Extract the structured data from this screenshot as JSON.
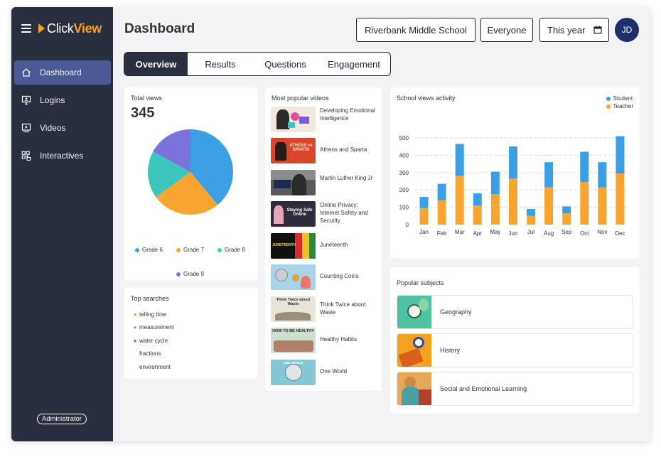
{
  "app": {
    "logo_click": "Click",
    "logo_view": "View"
  },
  "sidebar": {
    "items": [
      {
        "label": "Dashboard",
        "icon": "home-icon",
        "active": true
      },
      {
        "label": "Logins",
        "icon": "login-monitor-icon",
        "active": false
      },
      {
        "label": "Videos",
        "icon": "video-icon",
        "active": false
      },
      {
        "label": "Interactives",
        "icon": "interactive-icon",
        "active": false
      }
    ],
    "role": "Administrator"
  },
  "header": {
    "title": "Dashboard",
    "school": "Riverbank Middle School",
    "audience": "Everyone",
    "period": "This year",
    "avatar_initials": "JD"
  },
  "tabs": [
    {
      "label": "Overview",
      "active": true
    },
    {
      "label": "Results",
      "active": false
    },
    {
      "label": "Questions",
      "active": false
    },
    {
      "label": "Engagement",
      "active": false
    }
  ],
  "total_views": {
    "title": "Total views",
    "value": "345",
    "legend": [
      {
        "label": "Grade 6",
        "color": "#3d9fe3"
      },
      {
        "label": "Grade 7",
        "color": "#f7a530"
      },
      {
        "label": "Grade 8",
        "color": "#3ec5bd"
      },
      {
        "label": "Grade 9",
        "color": "#7b73db"
      }
    ]
  },
  "top_searches": {
    "title": "Top searches",
    "items": [
      {
        "label": "telling time",
        "medal": "gold"
      },
      {
        "label": "measurement",
        "medal": "silver"
      },
      {
        "label": "water cycle",
        "medal": "bronze"
      },
      {
        "label": "fractions",
        "medal": ""
      },
      {
        "label": "environment",
        "medal": ""
      }
    ]
  },
  "popular_videos": {
    "title": "Most popular videos",
    "items": [
      {
        "title": "Developing Emotional Intelligence",
        "thumb_color": "#f1e9dc",
        "thumb_text": ""
      },
      {
        "title": "Athens and Sparta",
        "thumb_color": "#d9462a",
        "thumb_text": "ATHENS vs SPARTA"
      },
      {
        "title": "Martin Luther King Jr",
        "thumb_color": "#5a5a5a",
        "thumb_text": ""
      },
      {
        "title": "Online Privacy: Internet Safety and Security",
        "thumb_color": "#2e2b3a",
        "thumb_text": "Staying Safe Online"
      },
      {
        "title": "Juneteenth",
        "thumb_color": "#111111",
        "thumb_text": "JUNETEENTH"
      },
      {
        "title": "Counting Coins",
        "thumb_color": "#a9d3e8",
        "thumb_text": ""
      },
      {
        "title": "Think Twice about Waste",
        "thumb_color": "#e8e4d8",
        "thumb_text": "Think Twice about Waste"
      },
      {
        "title": "Healthy Habits",
        "thumb_color": "#cfe0d0",
        "thumb_text": "HOW TO BE HEALTHY"
      },
      {
        "title": "One World",
        "thumb_color": "#86c7d6",
        "thumb_text": "ONE WORLD"
      }
    ]
  },
  "activity": {
    "title": "School views activity",
    "legend": [
      {
        "label": "Student",
        "color": "#3d9fe3"
      },
      {
        "label": "Teacher",
        "color": "#f7a530"
      }
    ]
  },
  "popular_subjects": {
    "title": "Popular subjects",
    "items": [
      {
        "label": "Geography",
        "thumb_color": "#4fc3a1"
      },
      {
        "label": "History",
        "thumb_color": "#f2a21c"
      },
      {
        "label": "Social and Emotional Learning",
        "thumb_color": "#e8a85a"
      }
    ]
  },
  "chart_data": [
    {
      "type": "pie",
      "title": "Total views",
      "categories": [
        "Grade 6",
        "Grade 7",
        "Grade 8",
        "Grade 9"
      ],
      "values": [
        39,
        26,
        18,
        17
      ]
    },
    {
      "type": "bar",
      "title": "School views activity",
      "stacked": true,
      "categories": [
        "Jan",
        "Feb",
        "Mar",
        "Apr",
        "May",
        "Jun",
        "Jul",
        "Aug",
        "Sep",
        "Oct",
        "Nov",
        "Dec"
      ],
      "series": [
        {
          "name": "Teacher",
          "values": [
            95,
            140,
            280,
            110,
            175,
            265,
            50,
            215,
            65,
            245,
            215,
            295
          ]
        },
        {
          "name": "Student",
          "values": [
            65,
            95,
            185,
            70,
            130,
            185,
            40,
            145,
            40,
            175,
            145,
            215
          ]
        }
      ],
      "ylim": [
        0,
        500
      ],
      "yticks": [
        0,
        100,
        200,
        300,
        400,
        500
      ],
      "grid": true,
      "legend_position": "top-right"
    }
  ]
}
